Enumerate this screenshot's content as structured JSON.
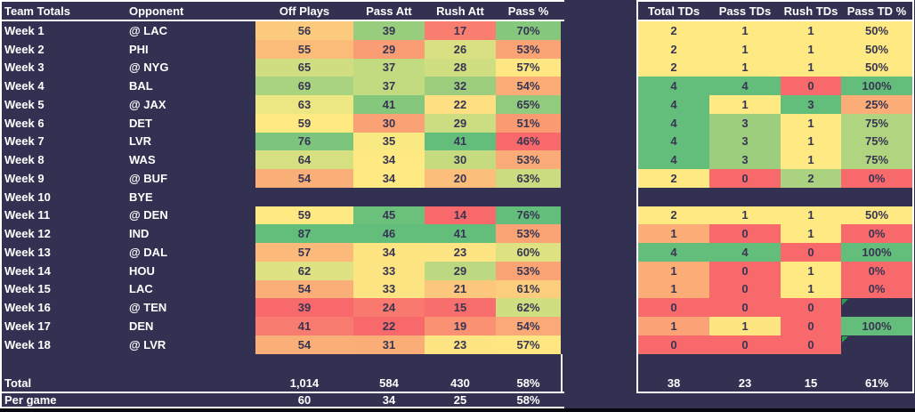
{
  "app": {
    "background": "#333151",
    "grid_color": "#FFFFFF",
    "cell_text_color": "#373552",
    "label_text_color": "#FFFFFF",
    "error_marker_color": "#22A14F",
    "scale_min_color": "#F8696B",
    "scale_mid_color": "#FFE983",
    "scale_max_color": "#63BE7B"
  },
  "left_table": {
    "title_header": "Team Totals",
    "opponent_header": "Opponent",
    "stat_headers": [
      "Off Plays",
      "Pass Att",
      "Rush Att",
      "Pass %"
    ],
    "rows": [
      {
        "week": "Week 1",
        "opponent": "@ LAC",
        "cells": [
          {
            "v": "56",
            "bg": "#FCCA7C"
          },
          {
            "v": "39",
            "bg": "#98CD7E"
          },
          {
            "v": "17",
            "bg": "#F97E70"
          },
          {
            "v": "70%",
            "bg": "#84C77D"
          }
        ]
      },
      {
        "week": "Week 2",
        "opponent": "PHI",
        "cells": [
          {
            "v": "55",
            "bg": "#FBBC7A"
          },
          {
            "v": "29",
            "bg": "#FA9D74"
          },
          {
            "v": "26",
            "bg": "#D9E082"
          },
          {
            "v": "53%",
            "bg": "#FAA375"
          }
        ]
      },
      {
        "week": "Week 3",
        "opponent": "@ NYG",
        "cells": [
          {
            "v": "65",
            "bg": "#D0DE81"
          },
          {
            "v": "37",
            "bg": "#C3DB80"
          },
          {
            "v": "28",
            "bg": "#CEDE81"
          },
          {
            "v": "57%",
            "bg": "#FEE682"
          }
        ]
      },
      {
        "week": "Week 4",
        "opponent": "BAL",
        "cells": [
          {
            "v": "69",
            "bg": "#AAD37F"
          },
          {
            "v": "37",
            "bg": "#C3DB80"
          },
          {
            "v": "32",
            "bg": "#9CCE7E"
          },
          {
            "v": "54%",
            "bg": "#FBAC77"
          }
        ]
      },
      {
        "week": "Week 5",
        "opponent": "@ JAX",
        "cells": [
          {
            "v": "63",
            "bg": "#EDE783"
          },
          {
            "v": "41",
            "bg": "#84C77D"
          },
          {
            "v": "22",
            "bg": "#FEDF81"
          },
          {
            "v": "65%",
            "bg": "#90CB7E"
          }
        ]
      },
      {
        "week": "Week 6",
        "opponent": "DET",
        "cells": [
          {
            "v": "59",
            "bg": "#FEE983"
          },
          {
            "v": "30",
            "bg": "#FAA175"
          },
          {
            "v": "29",
            "bg": "#CBDD81"
          },
          {
            "v": "51%",
            "bg": "#F99A73"
          }
        ]
      },
      {
        "week": "Week 7",
        "opponent": "LVR",
        "cells": [
          {
            "v": "76",
            "bg": "#7DC57D"
          },
          {
            "v": "35",
            "bg": "#F8E983"
          },
          {
            "v": "41",
            "bg": "#63BE7B"
          },
          {
            "v": "46%",
            "bg": "#F8696B"
          }
        ]
      },
      {
        "week": "Week 8",
        "opponent": "WAS",
        "cells": [
          {
            "v": "64",
            "bg": "#D6E081"
          },
          {
            "v": "34",
            "bg": "#FEE983"
          },
          {
            "v": "30",
            "bg": "#C6DB80"
          },
          {
            "v": "53%",
            "bg": "#FBAB77"
          }
        ]
      },
      {
        "week": "Week 9",
        "opponent": "@ BUF",
        "cells": [
          {
            "v": "54",
            "bg": "#FBAF78"
          },
          {
            "v": "34",
            "bg": "#FEE983"
          },
          {
            "v": "20",
            "bg": "#FCBF7B"
          },
          {
            "v": "63%",
            "bg": "#C9DC80"
          }
        ]
      },
      {
        "week": "Week 10",
        "opponent": "BYE",
        "cells": []
      },
      {
        "week": "Week 11",
        "opponent": "@ DEN",
        "cells": [
          {
            "v": "59",
            "bg": "#FEE983"
          },
          {
            "v": "45",
            "bg": "#6BC07C"
          },
          {
            "v": "14",
            "bg": "#F8696B"
          },
          {
            "v": "76%",
            "bg": "#63BE7B"
          }
        ]
      },
      {
        "week": "Week 12",
        "opponent": "IND",
        "cells": [
          {
            "v": "87",
            "bg": "#63BE7B"
          },
          {
            "v": "46",
            "bg": "#63BE7B"
          },
          {
            "v": "41",
            "bg": "#63BE7B"
          },
          {
            "v": "53%",
            "bg": "#FAA375"
          }
        ]
      },
      {
        "week": "Week 13",
        "opponent": "@ DAL",
        "cells": [
          {
            "v": "57",
            "bg": "#FBBA79"
          },
          {
            "v": "34",
            "bg": "#FEE582"
          },
          {
            "v": "23",
            "bg": "#FEE482"
          },
          {
            "v": "60%",
            "bg": "#DDE182"
          }
        ]
      },
      {
        "week": "Week 14",
        "opponent": "HOU",
        "cells": [
          {
            "v": "62",
            "bg": "#DEE282"
          },
          {
            "v": "33",
            "bg": "#FDE482"
          },
          {
            "v": "29",
            "bg": "#BCD880"
          },
          {
            "v": "53%",
            "bg": "#FAA375"
          }
        ]
      },
      {
        "week": "Week 15",
        "opponent": "LAC",
        "cells": [
          {
            "v": "54",
            "bg": "#FBAF78"
          },
          {
            "v": "33",
            "bg": "#FDE482"
          },
          {
            "v": "21",
            "bg": "#FCC77C"
          },
          {
            "v": "61%",
            "bg": "#FCCD7D"
          }
        ]
      },
      {
        "week": "Week 16",
        "opponent": "@ TEN",
        "cells": [
          {
            "v": "39",
            "bg": "#F8696B"
          },
          {
            "v": "24",
            "bg": "#F9796F"
          },
          {
            "v": "15",
            "bg": "#F86E6C"
          },
          {
            "v": "62%",
            "bg": "#CFDE81"
          }
        ]
      },
      {
        "week": "Week 17",
        "opponent": "DEN",
        "cells": [
          {
            "v": "41",
            "bg": "#F87B70"
          },
          {
            "v": "22",
            "bg": "#F8696B"
          },
          {
            "v": "19",
            "bg": "#FA9173"
          },
          {
            "v": "54%",
            "bg": "#FBA977"
          }
        ]
      },
      {
        "week": "Week 18",
        "opponent": "@ LVR",
        "cells": [
          {
            "v": "54",
            "bg": "#FBAF78"
          },
          {
            "v": "31",
            "bg": "#FBAD77"
          },
          {
            "v": "23",
            "bg": "#FEE482"
          },
          {
            "v": "57%",
            "bg": "#FEE682"
          }
        ]
      }
    ],
    "total_row": {
      "label": "Total",
      "values": [
        "1,014",
        "584",
        "430",
        "58%"
      ]
    },
    "per_game_row": {
      "label": "Per game",
      "values": [
        "60",
        "34",
        "25",
        "58%"
      ]
    }
  },
  "right_table": {
    "stat_headers": [
      "Total TDs",
      "Pass TDs",
      "Rush TDs",
      "Pass TD %"
    ],
    "rows": [
      {
        "cells": [
          {
            "v": "2",
            "bg": "#FEE983"
          },
          {
            "v": "1",
            "bg": "#FEE983"
          },
          {
            "v": "1",
            "bg": "#FEE983"
          },
          {
            "v": "50%",
            "bg": "#FEE983"
          }
        ]
      },
      {
        "cells": [
          {
            "v": "2",
            "bg": "#FEE983"
          },
          {
            "v": "1",
            "bg": "#FEE983"
          },
          {
            "v": "1",
            "bg": "#FEE983"
          },
          {
            "v": "50%",
            "bg": "#FEE983"
          }
        ]
      },
      {
        "cells": [
          {
            "v": "2",
            "bg": "#FEE983"
          },
          {
            "v": "1",
            "bg": "#FEE983"
          },
          {
            "v": "1",
            "bg": "#FEE983"
          },
          {
            "v": "50%",
            "bg": "#FEE983"
          }
        ]
      },
      {
        "cells": [
          {
            "v": "4",
            "bg": "#63BE7B"
          },
          {
            "v": "4",
            "bg": "#63BE7B"
          },
          {
            "v": "0",
            "bg": "#F8696B"
          },
          {
            "v": "100%",
            "bg": "#63BE7B"
          }
        ]
      },
      {
        "cells": [
          {
            "v": "4",
            "bg": "#63BE7B"
          },
          {
            "v": "1",
            "bg": "#FEE983"
          },
          {
            "v": "3",
            "bg": "#63BE7B"
          },
          {
            "v": "25%",
            "bg": "#FBAC77"
          }
        ]
      },
      {
        "cells": [
          {
            "v": "4",
            "bg": "#63BE7B"
          },
          {
            "v": "3",
            "bg": "#9CCE7E"
          },
          {
            "v": "1",
            "bg": "#FEE983"
          },
          {
            "v": "75%",
            "bg": "#B0D47F"
          }
        ]
      },
      {
        "cells": [
          {
            "v": "4",
            "bg": "#63BE7B"
          },
          {
            "v": "3",
            "bg": "#9CCE7E"
          },
          {
            "v": "1",
            "bg": "#FEE983"
          },
          {
            "v": "75%",
            "bg": "#B0D47F"
          }
        ]
      },
      {
        "cells": [
          {
            "v": "4",
            "bg": "#63BE7B"
          },
          {
            "v": "3",
            "bg": "#9CCE7E"
          },
          {
            "v": "1",
            "bg": "#FEE983"
          },
          {
            "v": "75%",
            "bg": "#B0D47F"
          }
        ]
      },
      {
        "cells": [
          {
            "v": "2",
            "bg": "#FEE983"
          },
          {
            "v": "0",
            "bg": "#F8696B"
          },
          {
            "v": "2",
            "bg": "#ABD37F"
          },
          {
            "v": "0%",
            "bg": "#F8696B"
          }
        ]
      },
      {
        "cells": []
      },
      {
        "cells": [
          {
            "v": "2",
            "bg": "#FEE983"
          },
          {
            "v": "1",
            "bg": "#FEE983"
          },
          {
            "v": "1",
            "bg": "#FEE983"
          },
          {
            "v": "50%",
            "bg": "#FEE983"
          }
        ]
      },
      {
        "cells": [
          {
            "v": "1",
            "bg": "#FBAC77"
          },
          {
            "v": "0",
            "bg": "#F8696B"
          },
          {
            "v": "1",
            "bg": "#FEE983"
          },
          {
            "v": "0%",
            "bg": "#F8696B"
          }
        ]
      },
      {
        "cells": [
          {
            "v": "4",
            "bg": "#63BE7B"
          },
          {
            "v": "4",
            "bg": "#63BE7B"
          },
          {
            "v": "0",
            "bg": "#F8696B"
          },
          {
            "v": "100%",
            "bg": "#63BE7B"
          }
        ]
      },
      {
        "cells": [
          {
            "v": "1",
            "bg": "#FBAC77"
          },
          {
            "v": "0",
            "bg": "#F8696B"
          },
          {
            "v": "1",
            "bg": "#FEE983"
          },
          {
            "v": "0%",
            "bg": "#F8696B"
          }
        ]
      },
      {
        "cells": [
          {
            "v": "1",
            "bg": "#FBAC77"
          },
          {
            "v": "0",
            "bg": "#F8696B"
          },
          {
            "v": "1",
            "bg": "#FEE983"
          },
          {
            "v": "0%",
            "bg": "#F8696B"
          }
        ]
      },
      {
        "cells": [
          {
            "v": "0",
            "bg": "#F8696B"
          },
          {
            "v": "0",
            "bg": "#F8696B"
          },
          {
            "v": "0",
            "bg": "#F8696B"
          },
          {
            "v": "",
            "bg": "",
            "empty_with_marker": true
          }
        ]
      },
      {
        "cells": [
          {
            "v": "1",
            "bg": "#FBA276"
          },
          {
            "v": "1",
            "bg": "#FDE682"
          },
          {
            "v": "0",
            "bg": "#F8696B"
          },
          {
            "v": "100%",
            "bg": "#63BE7B"
          }
        ]
      },
      {
        "cells": [
          {
            "v": "0",
            "bg": "#F8696B"
          },
          {
            "v": "0",
            "bg": "#F8696B"
          },
          {
            "v": "0",
            "bg": "#F8696B"
          },
          {
            "v": "",
            "bg": "",
            "empty_with_marker": true
          }
        ]
      }
    ],
    "total_row": {
      "values": [
        "38",
        "23",
        "15",
        "61%"
      ]
    }
  }
}
